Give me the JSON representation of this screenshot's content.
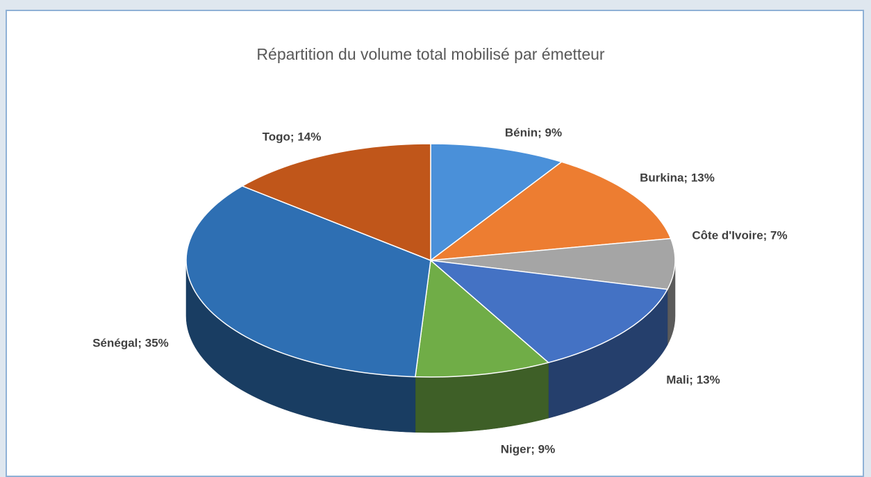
{
  "chart_data": {
    "type": "pie",
    "title": "Répartition du volume total mobilisé par émetteur",
    "values": [
      9,
      13,
      7,
      13,
      9,
      35,
      14
    ],
    "value_labels": [
      "Bénin; 9%",
      "Burkina; 13%",
      "Côte d'Ivoire; 7%",
      "Mali; 13%",
      "Niger; 9%",
      "Sénégal; 35%",
      "Togo; 14%"
    ],
    "colors": [
      "#4a90d9",
      "#ed7d31",
      "#a5a5a5",
      "#4472c4",
      "#70ad47",
      "#2e6fb3",
      "#c0561a"
    ]
  }
}
